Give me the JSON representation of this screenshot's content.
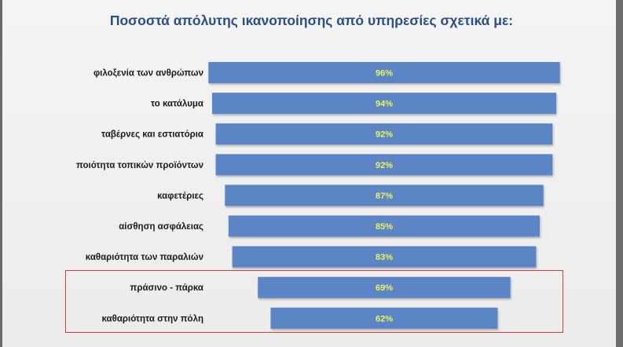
{
  "chart_data": {
    "type": "bar",
    "orientation": "horizontal",
    "title": "Ποσοστά απόλυτης ικανοποίησης από υπηρεσίες σχετικά με:",
    "categories": [
      "φιλοξενία των ανθρώπων",
      "το κατάλυμα",
      "ταβέρνες και εστιατόρια",
      "ποιότητα τοπικών προϊόντων",
      "καφετέριες",
      "αίσθηση ασφάλειας",
      "καθαριότητα των παραλιών",
      "πράσινο - πάρκα",
      "καθαριότητα στην πόλη"
    ],
    "values": [
      96,
      94,
      92,
      92,
      87,
      85,
      83,
      69,
      62
    ],
    "value_labels": [
      "96%",
      "94%",
      "92%",
      "92%",
      "87%",
      "85%",
      "83%",
      "69%",
      "62%"
    ],
    "bar_alignment": "centered",
    "highlighted_categories": [
      "πράσινο - πάρκα",
      "καθαριότητα στην πόλη"
    ],
    "colors": {
      "bar": "#5b85c6",
      "value_label": "#f0f35a",
      "title": "#2a4f86",
      "highlight_border": "#e0393d"
    }
  }
}
